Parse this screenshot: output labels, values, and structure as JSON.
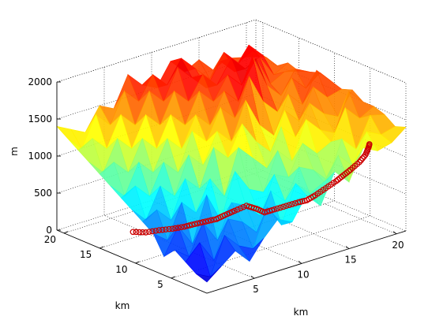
{
  "chart_data": {
    "type": "surface",
    "title": "",
    "xlabel": "km",
    "ylabel": "km",
    "zlabel": "m",
    "xlim": [
      0,
      21
    ],
    "ylim": [
      0,
      21
    ],
    "zlim": [
      0,
      2000
    ],
    "x_ticks": [
      "5",
      "10",
      "15",
      "20"
    ],
    "y_ticks": [
      "5",
      "10",
      "15",
      "20"
    ],
    "z_ticks": [
      "0",
      "500",
      "1000",
      "1500",
      "2000"
    ],
    "grid": true,
    "colormap": "jet",
    "path_color": "#cc0000",
    "surface_x": [
      0,
      1.5,
      3,
      4.5,
      6,
      7.5,
      9,
      10.5,
      12,
      13.5,
      15,
      16.5,
      18,
      19.5,
      21
    ],
    "surface_y": [
      0,
      1.5,
      3,
      4.5,
      6,
      7.5,
      9,
      10.5,
      12,
      13.5,
      15,
      16.5,
      18,
      19.5,
      21
    ],
    "surface_z": [
      [
        150,
        300,
        450,
        250,
        500,
        700,
        600,
        900,
        700,
        1100,
        900,
        1300,
        1200,
        1250,
        1400
      ],
      [
        200,
        100,
        600,
        400,
        300,
        800,
        500,
        1000,
        800,
        900,
        1200,
        1000,
        1400,
        1300,
        1350
      ],
      [
        300,
        500,
        200,
        700,
        600,
        400,
        900,
        700,
        1100,
        1000,
        800,
        1300,
        1100,
        1500,
        1450
      ],
      [
        400,
        250,
        650,
        350,
        800,
        700,
        500,
        1000,
        900,
        1300,
        1100,
        1200,
        1600,
        1400,
        1500
      ],
      [
        250,
        600,
        300,
        900,
        500,
        1100,
        800,
        700,
        1200,
        1000,
        1500,
        1300,
        1200,
        1700,
        1500
      ],
      [
        500,
        350,
        800,
        600,
        1000,
        700,
        1300,
        1100,
        900,
        1400,
        1200,
        1600,
        1400,
        1300,
        1600
      ],
      [
        600,
        700,
        500,
        1000,
        800,
        1300,
        1100,
        1500,
        1200,
        1000,
        1500,
        1300,
        1700,
        1500,
        1550
      ],
      [
        700,
        500,
        900,
        700,
        1200,
        1000,
        1400,
        1200,
        1700,
        1300,
        1100,
        1600,
        1400,
        1800,
        1600
      ],
      [
        800,
        900,
        700,
        1100,
        900,
        1400,
        1200,
        1600,
        1400,
        1900,
        1500,
        1300,
        1700,
        1500,
        1650
      ],
      [
        900,
        700,
        1100,
        900,
        1300,
        1100,
        1500,
        1300,
        1700,
        1500,
        2050,
        1600,
        1400,
        1700,
        1600
      ],
      [
        1000,
        1100,
        900,
        1300,
        1100,
        1500,
        1300,
        1700,
        1500,
        1800,
        1600,
        1900,
        1500,
        1600,
        1550
      ],
      [
        1100,
        900,
        1300,
        1100,
        1500,
        1300,
        1700,
        1500,
        1800,
        1600,
        1900,
        1700,
        1800,
        1500,
        1600
      ],
      [
        1200,
        1300,
        1100,
        1500,
        1300,
        1700,
        1500,
        1900,
        1700,
        1500,
        1800,
        1600,
        1900,
        1700,
        1500
      ],
      [
        1300,
        1100,
        1500,
        1300,
        1700,
        1500,
        1800,
        1600,
        1900,
        1700,
        1500,
        1800,
        1600,
        1700,
        1550
      ],
      [
        1400,
        1300,
        1200,
        1500,
        1400,
        1800,
        1600,
        1500,
        1800,
        1600,
        1700,
        1500,
        1600,
        1550,
        1500
      ]
    ],
    "path_x": [
      2.0,
      2.6,
      3.4,
      4.2,
      5.0,
      5.8,
      6.5,
      7.2,
      7.6,
      8.2,
      9.0,
      9.6,
      10.0,
      10.6,
      11.4,
      12.2,
      12.8,
      13.4,
      14.2,
      15.0,
      15.6,
      16.2,
      17.0,
      17.8,
      18.4,
      19.0
    ],
    "path_y": [
      13.0,
      12.0,
      11.2,
      10.4,
      9.8,
      9.4,
      8.8,
      8.2,
      7.6,
      7.0,
      6.4,
      5.8,
      5.2,
      4.6,
      4.0,
      3.4,
      3.0,
      2.6,
      2.2,
      1.8,
      1.6,
      1.4,
      1.2,
      1.4,
      1.8,
      2.4
    ],
    "path_z": [
      220,
      230,
      260,
      280,
      300,
      320,
      350,
      380,
      440,
      500,
      560,
      520,
      480,
      520,
      560,
      600,
      620,
      680,
      760,
      840,
      900,
      960,
      1040,
      1100,
      1150,
      1170
    ]
  }
}
